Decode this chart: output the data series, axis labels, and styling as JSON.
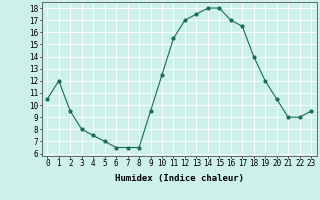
{
  "x": [
    0,
    1,
    2,
    3,
    4,
    5,
    6,
    7,
    8,
    9,
    10,
    11,
    12,
    13,
    14,
    15,
    16,
    17,
    18,
    19,
    20,
    21,
    22,
    23
  ],
  "y": [
    10.5,
    12.0,
    9.5,
    8.0,
    7.5,
    7.0,
    6.5,
    6.5,
    6.5,
    9.5,
    12.5,
    15.5,
    17.0,
    17.5,
    18.0,
    18.0,
    17.0,
    16.5,
    14.0,
    12.0,
    10.5,
    9.0,
    9.0,
    9.5
  ],
  "xlim": [
    -0.5,
    23.5
  ],
  "ylim": [
    5.8,
    18.5
  ],
  "yticks": [
    6,
    7,
    8,
    9,
    10,
    11,
    12,
    13,
    14,
    15,
    16,
    17,
    18
  ],
  "xtick_labels": [
    "0",
    "1",
    "2",
    "3",
    "4",
    "5",
    "6",
    "7",
    "8",
    "9",
    "10",
    "11",
    "12",
    "13",
    "14",
    "15",
    "16",
    "17",
    "18",
    "19",
    "20",
    "21",
    "22",
    "23"
  ],
  "xlabel": "Humidex (Indice chaleur)",
  "line_color": "#1a6b5a",
  "marker_color": "#1a6b5a",
  "bg_color": "#cef0ea",
  "grid_color": "#ffffff",
  "tick_fontsize": 5.5,
  "label_fontsize": 6.5
}
